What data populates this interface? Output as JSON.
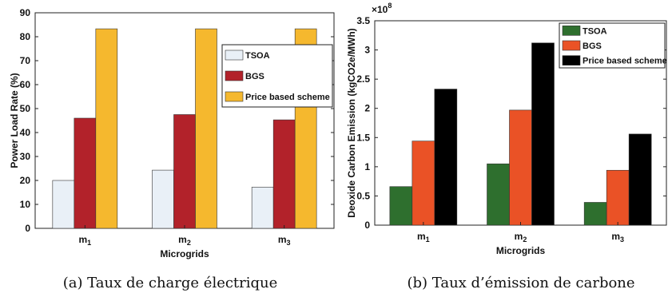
{
  "chart_data": [
    {
      "type": "bar",
      "caption": "(a) Taux de charge électrique",
      "xlabel": "Microgrids",
      "ylabel": "Power Load Rate (%)",
      "categories": [
        {
          "base": "m",
          "sub": "1"
        },
        {
          "base": "m",
          "sub": "2"
        },
        {
          "base": "m",
          "sub": "3"
        }
      ],
      "ylim": [
        0,
        90
      ],
      "yticks": [
        0,
        10,
        20,
        30,
        40,
        50,
        60,
        70,
        80,
        90
      ],
      "ytick_labels": [
        "0",
        "10",
        "20",
        "30",
        "40",
        "50",
        "60",
        "70",
        "80",
        "90"
      ],
      "legend_position": "upper-right",
      "grid": false,
      "series": [
        {
          "name": "TSOA",
          "color": "#e9f0f7",
          "values": [
            20,
            24.3,
            17.2
          ]
        },
        {
          "name": "BGS",
          "color": "#b2222a",
          "values": [
            46,
            47.5,
            45.3
          ]
        },
        {
          "name": "Price based scheme",
          "color": "#f5b82e",
          "values": [
            83.3,
            83.3,
            83.3
          ]
        }
      ]
    },
    {
      "type": "bar",
      "caption": "(b) Taux d’émission de carbone",
      "xlabel": "Microgrids",
      "ylabel": "Deoxide Carbon Emission (kgCO2e/MWh)",
      "exponent_base": "×10",
      "exponent_power": "8",
      "categories": [
        {
          "base": "m",
          "sub": "1"
        },
        {
          "base": "m",
          "sub": "2"
        },
        {
          "base": "m",
          "sub": "3"
        }
      ],
      "ylim": [
        0,
        3.5
      ],
      "yticks": [
        0,
        0.5,
        1,
        1.5,
        2,
        2.5,
        3,
        3.5
      ],
      "ytick_labels": [
        "0",
        "0.5",
        "1",
        "1.5",
        "2",
        "2.5",
        "3",
        "3.5"
      ],
      "legend_position": "upper-right",
      "grid": false,
      "series": [
        {
          "name": "TSOA",
          "color": "#2e6f2e",
          "values": [
            0.66,
            1.05,
            0.39
          ]
        },
        {
          "name": "BGS",
          "color": "#ea5226",
          "values": [
            1.44,
            1.97,
            0.94
          ]
        },
        {
          "name": "Price based scheme",
          "color": "#000000",
          "values": [
            2.33,
            3.12,
            1.56
          ]
        }
      ]
    }
  ]
}
